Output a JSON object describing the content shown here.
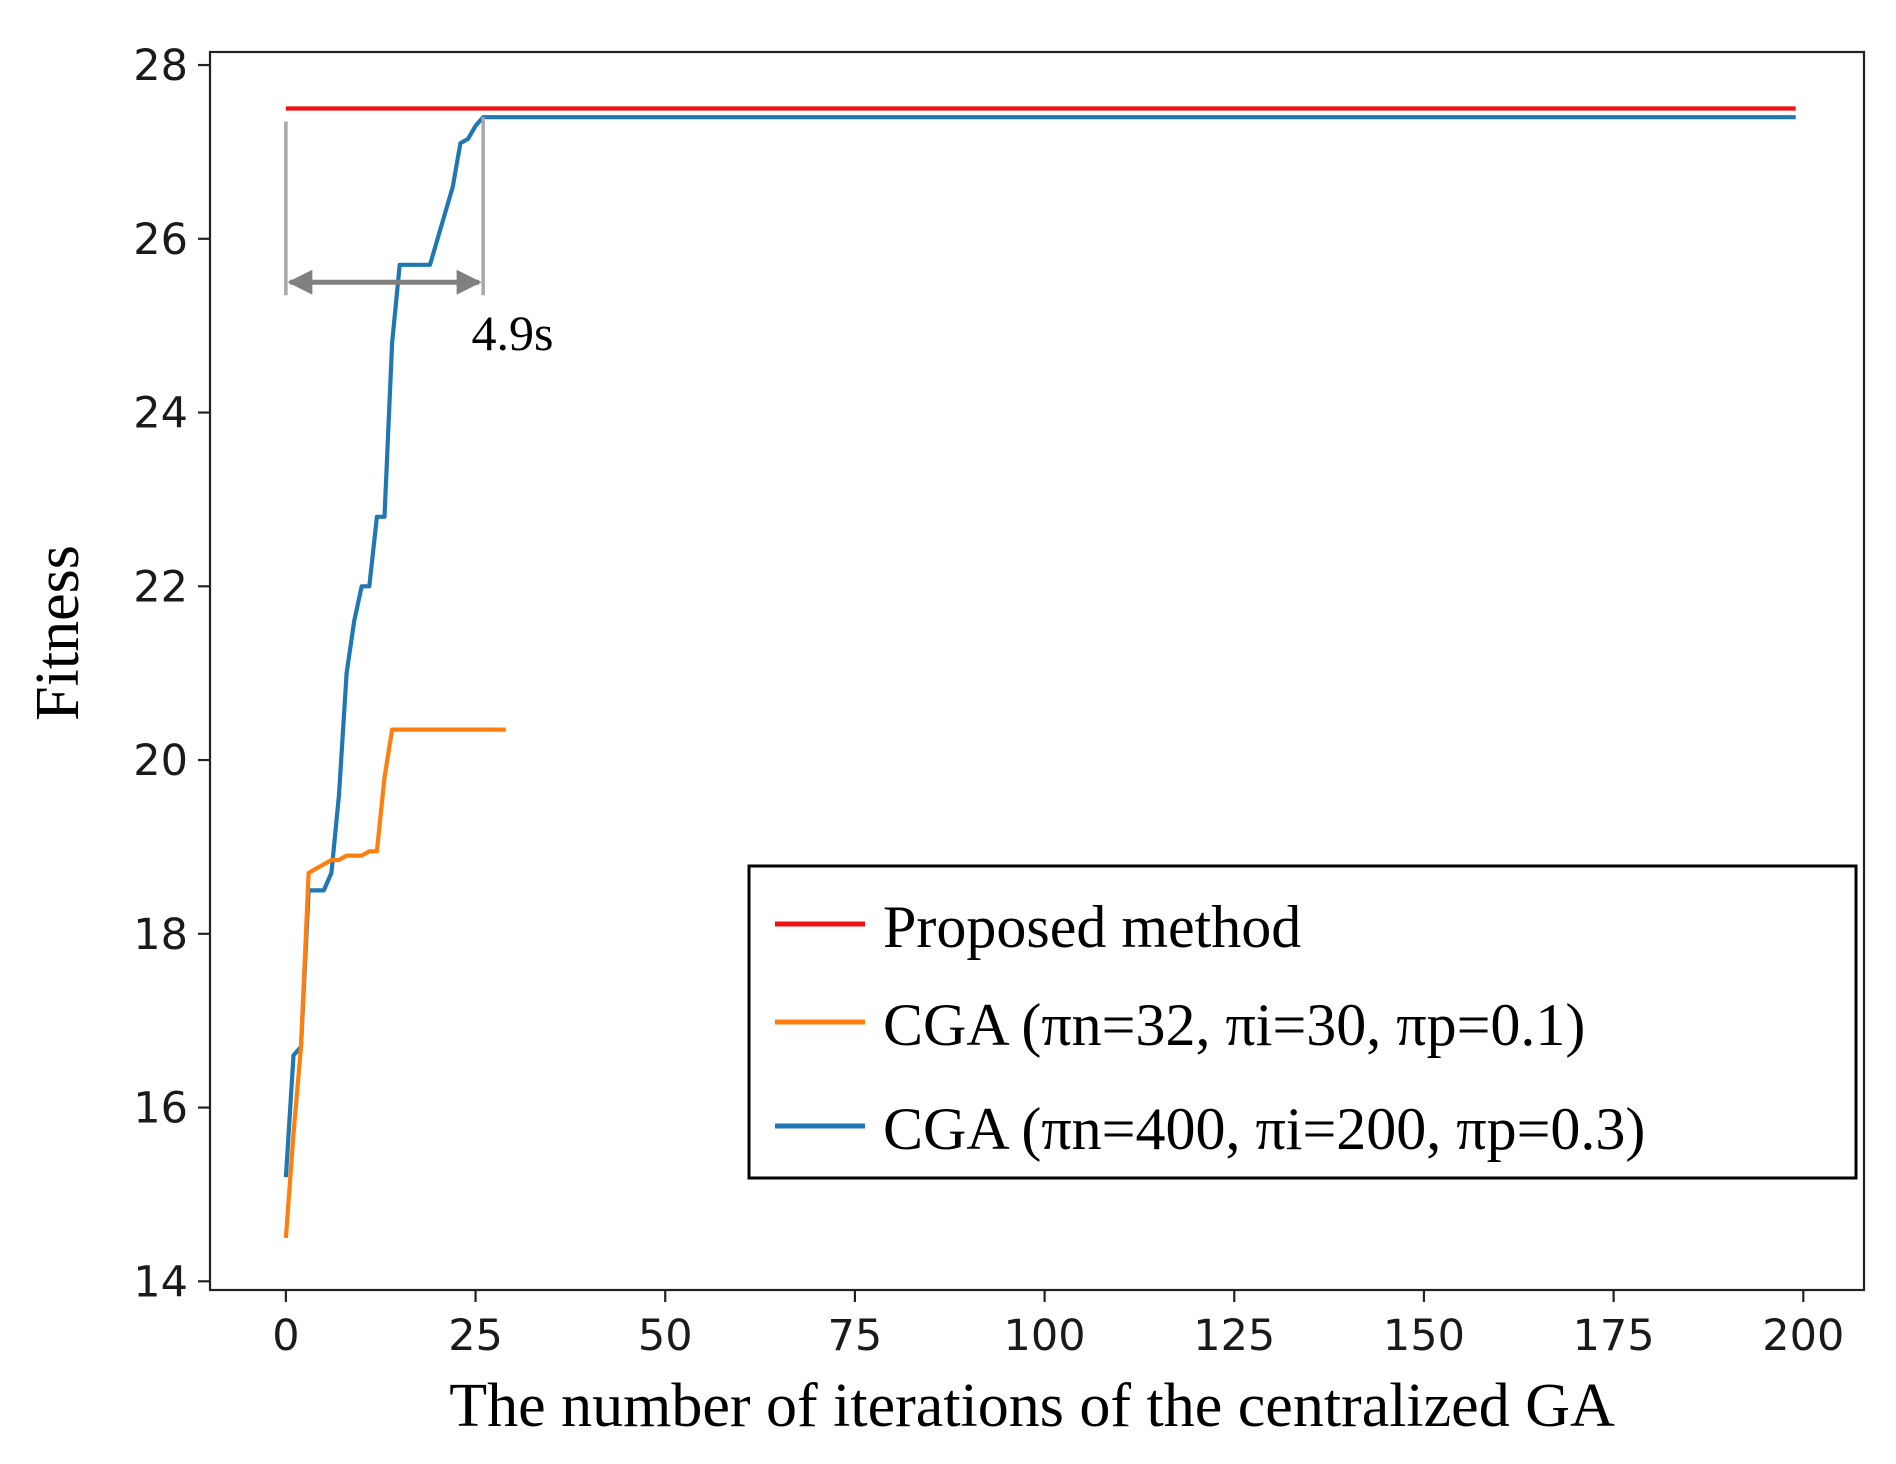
{
  "chart_data": {
    "type": "line",
    "title": "",
    "xlabel": "The number of iterations of the centralized GA",
    "ylabel": "Fitness",
    "xlim": [
      -10,
      208
    ],
    "ylim": [
      13.9,
      28.15
    ],
    "xticks": [
      0,
      25,
      50,
      75,
      100,
      125,
      150,
      175,
      200
    ],
    "yticks": [
      14,
      16,
      18,
      20,
      22,
      24,
      26,
      28
    ],
    "grid": false,
    "legend_position": "lower-right",
    "series": [
      {
        "name": "Proposed method",
        "color": "#ee1111",
        "points": [
          [
            0,
            27.5
          ],
          [
            199,
            27.5
          ]
        ]
      },
      {
        "name": "CGA (πn=32, πi=30, πp=0.1)",
        "color": "#ff7f0e",
        "points": [
          [
            0,
            14.5
          ],
          [
            1,
            15.7
          ],
          [
            2,
            16.7
          ],
          [
            3,
            18.7
          ],
          [
            4,
            18.75
          ],
          [
            5,
            18.8
          ],
          [
            6,
            18.85
          ],
          [
            7,
            18.85
          ],
          [
            8,
            18.9
          ],
          [
            9,
            18.9
          ],
          [
            10,
            18.9
          ],
          [
            11,
            18.95
          ],
          [
            12,
            18.95
          ],
          [
            13,
            19.8
          ],
          [
            14,
            20.35
          ],
          [
            15,
            20.35
          ],
          [
            20,
            20.35
          ],
          [
            25,
            20.35
          ],
          [
            29,
            20.35
          ]
        ]
      },
      {
        "name": "CGA (πn=400, πi=200, πp=0.3)",
        "color": "#1f77b4",
        "points": [
          [
            0,
            15.2
          ],
          [
            1,
            16.6
          ],
          [
            2,
            16.7
          ],
          [
            3,
            18.5
          ],
          [
            4,
            18.5
          ],
          [
            5,
            18.5
          ],
          [
            6,
            18.7
          ],
          [
            7,
            19.6
          ],
          [
            8,
            21.0
          ],
          [
            9,
            21.6
          ],
          [
            10,
            22.0
          ],
          [
            11,
            22.0
          ],
          [
            12,
            22.8
          ],
          [
            13,
            22.8
          ],
          [
            14,
            24.8
          ],
          [
            15,
            25.7
          ],
          [
            16,
            25.7
          ],
          [
            17,
            25.7
          ],
          [
            18,
            25.7
          ],
          [
            19,
            25.7
          ],
          [
            20,
            26.0
          ],
          [
            21,
            26.3
          ],
          [
            22,
            26.6
          ],
          [
            23,
            27.1
          ],
          [
            24,
            27.15
          ],
          [
            25,
            27.3
          ],
          [
            26,
            27.4
          ],
          [
            50,
            27.4
          ],
          [
            100,
            27.4
          ],
          [
            150,
            27.4
          ],
          [
            199,
            27.4
          ]
        ]
      }
    ],
    "annotation": {
      "text": "4.9s",
      "from_x": 0,
      "to_x": 26,
      "at_y": 25.5
    }
  },
  "legend": {
    "entries": [
      {
        "label": "Proposed method",
        "color": "#ee1111"
      },
      {
        "label": "CGA (πn=32, πi=30, πp=0.1)",
        "color": "#ff7f0e"
      },
      {
        "label": "CGA (πn=400, πi=200, πp=0.3)",
        "color": "#1f77b4"
      }
    ]
  }
}
